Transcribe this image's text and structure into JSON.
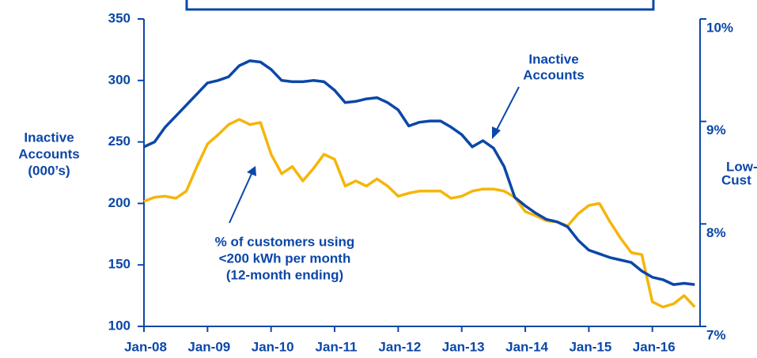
{
  "chart_data": {
    "type": "line",
    "ylabel": [
      "Inactive",
      "Accounts",
      "(000’s)"
    ],
    "y2label": [
      "Low-",
      "Cust"
    ],
    "x": [
      0,
      2,
      4,
      6,
      8,
      10,
      12,
      14,
      16,
      18,
      20,
      22,
      24,
      26,
      28,
      30,
      32,
      34,
      36,
      38,
      40,
      42,
      44,
      46,
      48,
      50,
      52,
      54,
      56,
      58,
      60,
      62,
      64,
      66,
      68,
      70,
      72,
      74,
      76,
      78,
      80,
      82,
      84,
      86,
      88,
      90,
      92,
      94,
      96,
      98,
      100,
      102,
      104
    ],
    "xlim": [
      0,
      105
    ],
    "xticks": [
      {
        "value": 0,
        "label": "Jan-08"
      },
      {
        "value": 12,
        "label": "Jan-09"
      },
      {
        "value": 24,
        "label": "Jan-10"
      },
      {
        "value": 36,
        "label": "Jan-11"
      },
      {
        "value": 48,
        "label": "Jan-12"
      },
      {
        "value": 60,
        "label": "Jan-13"
      },
      {
        "value": 72,
        "label": "Jan-14"
      },
      {
        "value": 84,
        "label": "Jan-15"
      },
      {
        "value": 96,
        "label": "Jan-16"
      }
    ],
    "ylim": [
      100,
      350
    ],
    "yticks": [
      100,
      150,
      200,
      250,
      300,
      350
    ],
    "y2lim": [
      7,
      10
    ],
    "y2ticks": [
      {
        "value": 7,
        "label": "7%"
      },
      {
        "value": 8,
        "label": "8%"
      },
      {
        "value": 9,
        "label": "9%"
      },
      {
        "value": 10,
        "label": "10%"
      }
    ],
    "series": [
      {
        "color": "#0b47a8",
        "values": [
          246,
          250,
          262,
          271,
          280,
          289,
          298,
          300,
          303,
          312,
          316,
          315,
          309,
          300,
          299,
          299,
          300,
          299,
          292,
          282,
          283,
          285,
          286,
          282,
          276,
          263,
          266,
          267,
          267,
          262,
          256,
          246,
          251,
          245,
          230,
          205,
          198,
          192,
          187,
          185,
          181,
          170,
          162,
          159,
          156,
          154,
          152,
          145,
          140,
          138,
          134,
          135,
          134
        ]
      },
      {
        "color": "#f5b50a",
        "axis": "y2",
        "values": [
          8.22,
          8.26,
          8.27,
          8.25,
          8.32,
          8.56,
          8.78,
          8.87,
          8.97,
          9.02,
          8.97,
          8.99,
          8.68,
          8.49,
          8.56,
          8.42,
          8.54,
          8.68,
          8.63,
          8.37,
          8.42,
          8.37,
          8.44,
          8.37,
          8.27,
          8.3,
          8.32,
          8.32,
          8.32,
          8.25,
          8.27,
          8.32,
          8.34,
          8.34,
          8.32,
          8.26,
          8.12,
          8.08,
          8.03,
          8.02,
          7.98,
          8.1,
          8.18,
          8.2,
          8.02,
          7.86,
          7.72,
          7.7,
          7.24,
          7.19,
          7.22,
          7.3,
          7.19
        ]
      }
    ],
    "annotations": [
      {
        "lines": [
          "Inactive",
          "Accounts"
        ]
      },
      {
        "lines": [
          "% of customers using",
          "<200 kWh per month",
          "(12-month ending)"
        ]
      }
    ]
  }
}
